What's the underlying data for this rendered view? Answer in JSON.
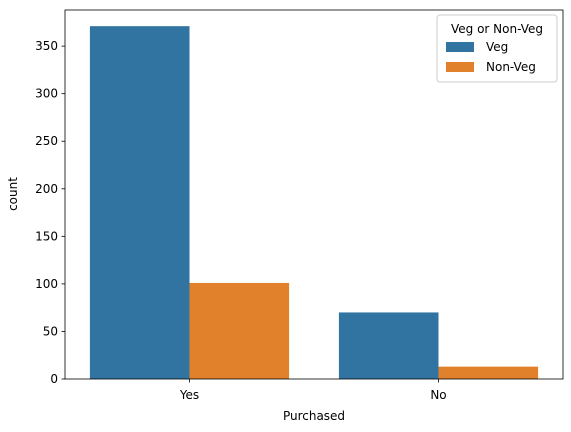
{
  "chart_data": {
    "type": "bar",
    "xlabel": "Purchased",
    "ylabel": "count",
    "categories": [
      "Yes",
      "No"
    ],
    "ylim": [
      0,
      388
    ],
    "yticks": [
      0,
      50,
      100,
      150,
      200,
      250,
      300,
      350
    ],
    "grid": false,
    "legend": {
      "title": "Veg or Non-Veg",
      "placement": "top-right"
    },
    "series": [
      {
        "name": "Veg",
        "color": "#3274a1",
        "values": [
          371,
          70
        ]
      },
      {
        "name": "Non-Veg",
        "color": "#e1812c",
        "values": [
          101,
          13
        ]
      }
    ]
  }
}
